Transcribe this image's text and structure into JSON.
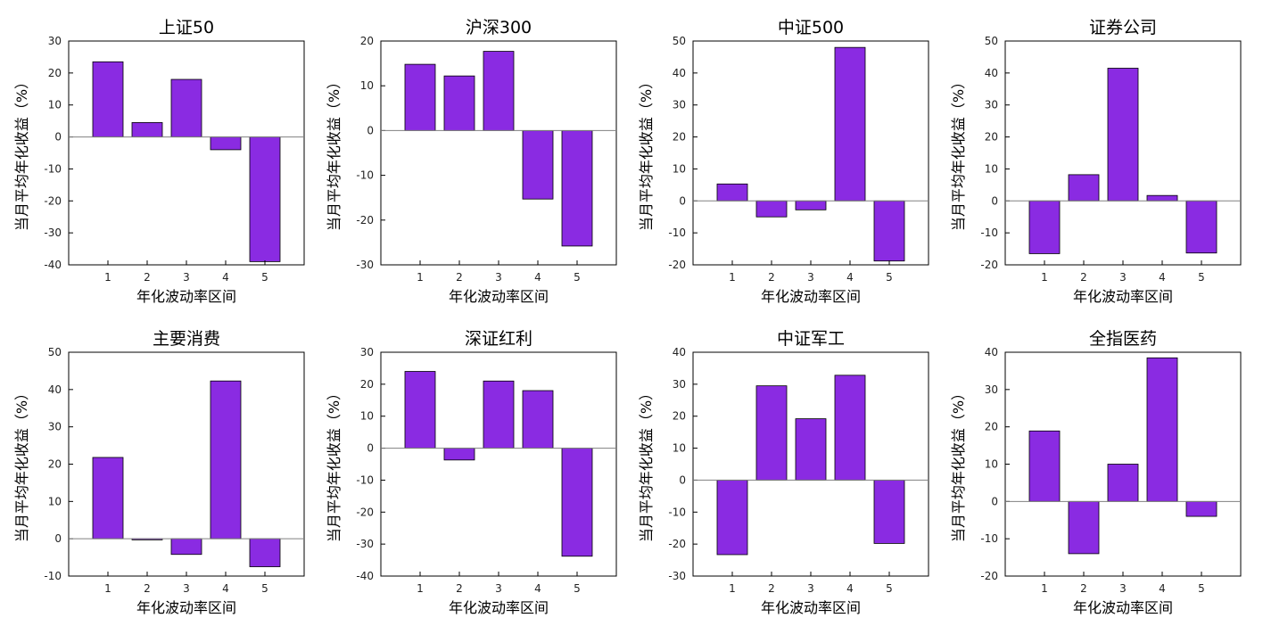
{
  "colors": {
    "bar_fill": "#8a2be2",
    "bar_stroke": "#000000",
    "axis": "#000000",
    "zero_line": "#808080"
  },
  "chart_data": [
    {
      "type": "bar",
      "title": "上证50",
      "xlabel": "年化波动率区间",
      "ylabel": "当月平均年化收益（%）",
      "categories": [
        "1",
        "2",
        "3",
        "4",
        "5"
      ],
      "values": [
        23.5,
        4.5,
        18.0,
        -4.0,
        -39.0
      ],
      "ylim": [
        -40,
        30
      ],
      "yticks": [
        "30",
        "20",
        "10",
        "0",
        "-10",
        "-20",
        "-30",
        "-40"
      ],
      "ytick_values": [
        30,
        20,
        10,
        0,
        -10,
        -20,
        -30,
        -40
      ]
    },
    {
      "type": "bar",
      "title": "沪深300",
      "xlabel": "年化波动率区间",
      "ylabel": "当月平均年化收益（%）",
      "categories": [
        "1",
        "2",
        "3",
        "4",
        "5"
      ],
      "values": [
        14.8,
        12.2,
        17.7,
        -15.3,
        -25.8
      ],
      "ylim": [
        -30,
        20
      ],
      "yticks": [
        "20",
        "10",
        "0",
        "-10",
        "-20",
        "-30"
      ],
      "ytick_values": [
        20,
        10,
        0,
        -10,
        -20,
        -30
      ]
    },
    {
      "type": "bar",
      "title": "中证500",
      "xlabel": "年化波动率区间",
      "ylabel": "当月平均年化收益（%）",
      "categories": [
        "1",
        "2",
        "3",
        "4",
        "5"
      ],
      "values": [
        5.3,
        -5.0,
        -2.8,
        48.0,
        -18.8
      ],
      "ylim": [
        -20,
        50
      ],
      "yticks": [
        "50",
        "40",
        "30",
        "20",
        "10",
        "0",
        "-10",
        "-20"
      ],
      "ytick_values": [
        50,
        40,
        30,
        20,
        10,
        0,
        -10,
        -20
      ]
    },
    {
      "type": "bar",
      "title": "证券公司",
      "xlabel": "年化波动率区间",
      "ylabel": "当月平均年化收益（%）",
      "categories": [
        "1",
        "2",
        "3",
        "4",
        "5"
      ],
      "values": [
        -16.5,
        8.2,
        41.5,
        1.7,
        -16.3
      ],
      "ylim": [
        -20,
        50
      ],
      "yticks": [
        "50",
        "40",
        "30",
        "20",
        "10",
        "0",
        "-10",
        "-20"
      ],
      "ytick_values": [
        50,
        40,
        30,
        20,
        10,
        0,
        -10,
        -20
      ]
    },
    {
      "type": "bar",
      "title": "主要消费",
      "xlabel": "年化波动率区间",
      "ylabel": "当月平均年化收益（%）",
      "categories": [
        "1",
        "2",
        "3",
        "4",
        "5"
      ],
      "values": [
        21.8,
        -0.3,
        -4.2,
        42.3,
        -7.5
      ],
      "ylim": [
        -10,
        50
      ],
      "yticks": [
        "50",
        "40",
        "30",
        "20",
        "10",
        "0",
        "-10"
      ],
      "ytick_values": [
        50,
        40,
        30,
        20,
        10,
        0,
        -10
      ]
    },
    {
      "type": "bar",
      "title": "深证红利",
      "xlabel": "年化波动率区间",
      "ylabel": "当月平均年化收益（%）",
      "categories": [
        "1",
        "2",
        "3",
        "4",
        "5"
      ],
      "values": [
        24.0,
        -3.7,
        21.0,
        18.0,
        -33.8
      ],
      "ylim": [
        -40,
        30
      ],
      "yticks": [
        "30",
        "20",
        "10",
        "0",
        "-10",
        "-20",
        "-30",
        "-40"
      ],
      "ytick_values": [
        30,
        20,
        10,
        0,
        -10,
        -20,
        -30,
        -40
      ]
    },
    {
      "type": "bar",
      "title": "中证军工",
      "xlabel": "年化波动率区间",
      "ylabel": "当月平均年化收益（%）",
      "categories": [
        "1",
        "2",
        "3",
        "4",
        "5"
      ],
      "values": [
        -23.3,
        29.5,
        19.2,
        32.8,
        -19.8
      ],
      "ylim": [
        -30,
        40
      ],
      "yticks": [
        "40",
        "30",
        "20",
        "10",
        "0",
        "-10",
        "-20",
        "-30"
      ],
      "ytick_values": [
        40,
        30,
        20,
        10,
        0,
        -10,
        -20,
        -30
      ]
    },
    {
      "type": "bar",
      "title": "全指医药",
      "xlabel": "年化波动率区间",
      "ylabel": "当月平均年化收益（%）",
      "categories": [
        "1",
        "2",
        "3",
        "4",
        "5"
      ],
      "values": [
        18.9,
        -14.0,
        10.0,
        38.5,
        -4.0
      ],
      "ylim": [
        -20,
        40
      ],
      "yticks": [
        "40",
        "30",
        "20",
        "10",
        "0",
        "-10",
        "-20"
      ],
      "ytick_values": [
        40,
        30,
        20,
        10,
        0,
        -10,
        -20
      ]
    }
  ]
}
